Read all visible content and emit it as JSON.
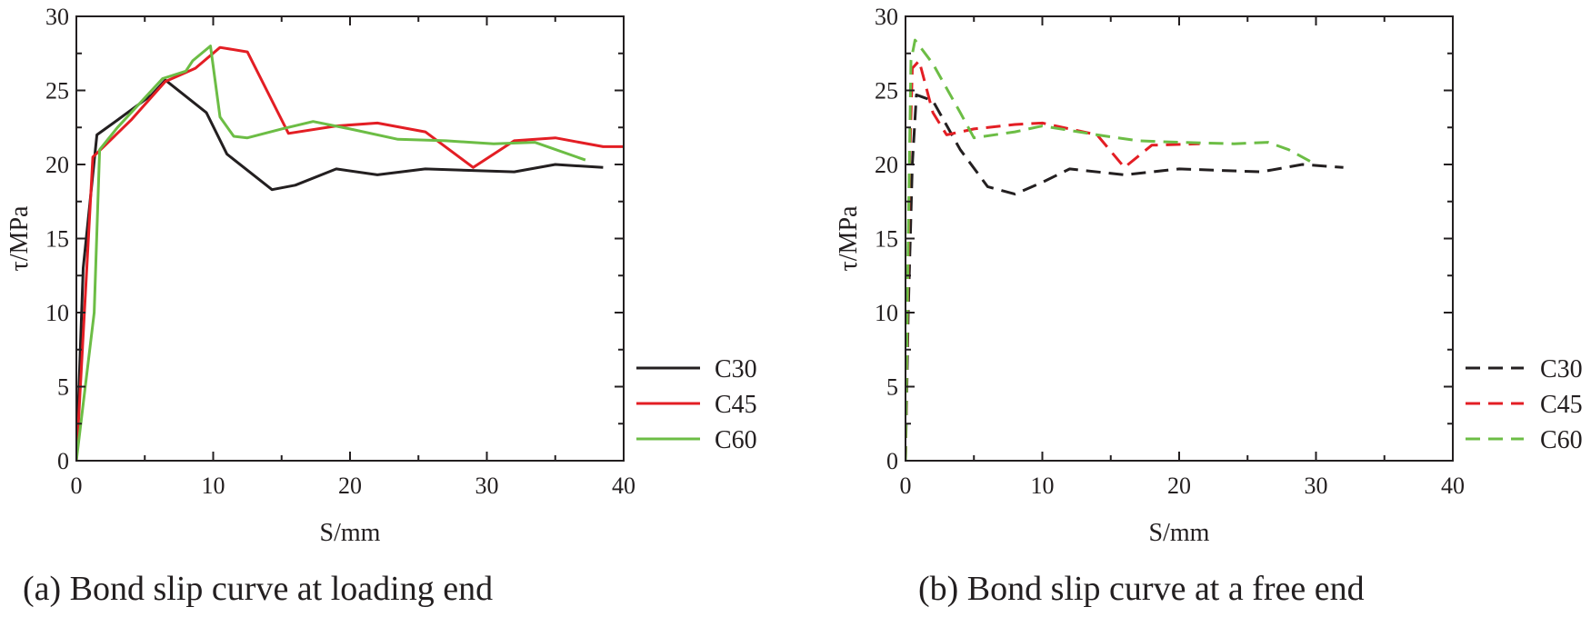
{
  "chart_data": [
    {
      "type": "line",
      "id": "a",
      "caption": "(a) Bond slip curve at loading end",
      "xlabel": "S/mm",
      "ylabel": "τ/MPa",
      "xlim": [
        0,
        40
      ],
      "ylim": [
        0,
        30
      ],
      "xticks": [
        "0",
        "10",
        "20",
        "30",
        "40"
      ],
      "yticks": [
        "0",
        "5",
        "10",
        "15",
        "20",
        "25",
        "30"
      ],
      "legend": "right",
      "series": [
        {
          "name": "C30",
          "color": "#231f20",
          "dash": "solid",
          "points": [
            [
              0,
              0
            ],
            [
              0.5,
              13
            ],
            [
              1.5,
              22
            ],
            [
              3,
              23
            ],
            [
              5.5,
              24.7
            ],
            [
              6.5,
              25.7
            ],
            [
              9.5,
              23.5
            ],
            [
              11,
              20.7
            ],
            [
              14.3,
              18.3
            ],
            [
              16,
              18.6
            ],
            [
              19,
              19.7
            ],
            [
              22,
              19.3
            ],
            [
              25.5,
              19.7
            ],
            [
              32,
              19.5
            ],
            [
              35,
              20
            ],
            [
              38.5,
              19.8
            ]
          ]
        },
        {
          "name": "C45",
          "color": "#e31e24",
          "dash": "solid",
          "points": [
            [
              0,
              0
            ],
            [
              1.2,
              20.5
            ],
            [
              2,
              21.2
            ],
            [
              4,
              23
            ],
            [
              6.5,
              25.6
            ],
            [
              8.7,
              26.5
            ],
            [
              10.5,
              27.9
            ],
            [
              12.5,
              27.6
            ],
            [
              15.5,
              22.1
            ],
            [
              19,
              22.6
            ],
            [
              22,
              22.8
            ],
            [
              25.5,
              22.2
            ],
            [
              29,
              19.8
            ],
            [
              32,
              21.6
            ],
            [
              35,
              21.8
            ],
            [
              38.5,
              21.2
            ],
            [
              40,
              21.2
            ]
          ]
        },
        {
          "name": "C60",
          "color": "#6cbd45",
          "dash": "solid",
          "points": [
            [
              0,
              0
            ],
            [
              1.3,
              10
            ],
            [
              1.7,
              21
            ],
            [
              3,
              22.5
            ],
            [
              6.3,
              25.8
            ],
            [
              8,
              26.3
            ],
            [
              8.5,
              27
            ],
            [
              9.8,
              28
            ],
            [
              10.5,
              23.2
            ],
            [
              11.5,
              21.9
            ],
            [
              12.5,
              21.8
            ],
            [
              15,
              22.4
            ],
            [
              17.3,
              22.9
            ],
            [
              20,
              22.4
            ],
            [
              23.5,
              21.7
            ],
            [
              27,
              21.6
            ],
            [
              30.5,
              21.4
            ],
            [
              33.5,
              21.5
            ],
            [
              37.2,
              20.3
            ]
          ]
        }
      ]
    },
    {
      "type": "line",
      "id": "b",
      "caption": "(b) Bond slip curve at a free end",
      "xlabel": "S/mm",
      "ylabel": "τ/MPa",
      "xlim": [
        0,
        40
      ],
      "ylim": [
        0,
        30
      ],
      "xticks": [
        "0",
        "10",
        "20",
        "30",
        "40"
      ],
      "yticks": [
        "0",
        "5",
        "10",
        "15",
        "20",
        "25",
        "30"
      ],
      "legend": "right",
      "series": [
        {
          "name": "C30",
          "color": "#231f20",
          "dash": "dashed",
          "points": [
            [
              0,
              0
            ],
            [
              0.2,
              10
            ],
            [
              0.5,
              20
            ],
            [
              0.8,
              24.7
            ],
            [
              2,
              24.3
            ],
            [
              4,
              21
            ],
            [
              6,
              18.5
            ],
            [
              8,
              18
            ],
            [
              10,
              18.8
            ],
            [
              12,
              19.7
            ],
            [
              16,
              19.3
            ],
            [
              20,
              19.7
            ],
            [
              26,
              19.5
            ],
            [
              29,
              20
            ],
            [
              32,
              19.8
            ]
          ]
        },
        {
          "name": "C45",
          "color": "#e31e24",
          "dash": "dashed",
          "points": [
            [
              0,
              0
            ],
            [
              0.3,
              20
            ],
            [
              0.5,
              26.5
            ],
            [
              1,
              27
            ],
            [
              2,
              23.5
            ],
            [
              3,
              22
            ],
            [
              5,
              22.4
            ],
            [
              8,
              22.7
            ],
            [
              10,
              22.8
            ],
            [
              14,
              22
            ],
            [
              16,
              19.8
            ],
            [
              18,
              21.3
            ],
            [
              21.5,
              21.4
            ]
          ]
        },
        {
          "name": "C60",
          "color": "#6cbd45",
          "dash": "dashed",
          "points": [
            [
              0,
              0
            ],
            [
              0.2,
              15
            ],
            [
              0.4,
              27
            ],
            [
              0.7,
              28.4
            ],
            [
              2,
              26.8
            ],
            [
              4,
              23.5
            ],
            [
              5,
              21.8
            ],
            [
              8,
              22.2
            ],
            [
              10,
              22.6
            ],
            [
              14,
              22
            ],
            [
              17,
              21.6
            ],
            [
              20,
              21.5
            ],
            [
              24,
              21.4
            ],
            [
              26.5,
              21.5
            ],
            [
              28,
              21
            ],
            [
              30,
              20
            ]
          ]
        }
      ]
    }
  ]
}
